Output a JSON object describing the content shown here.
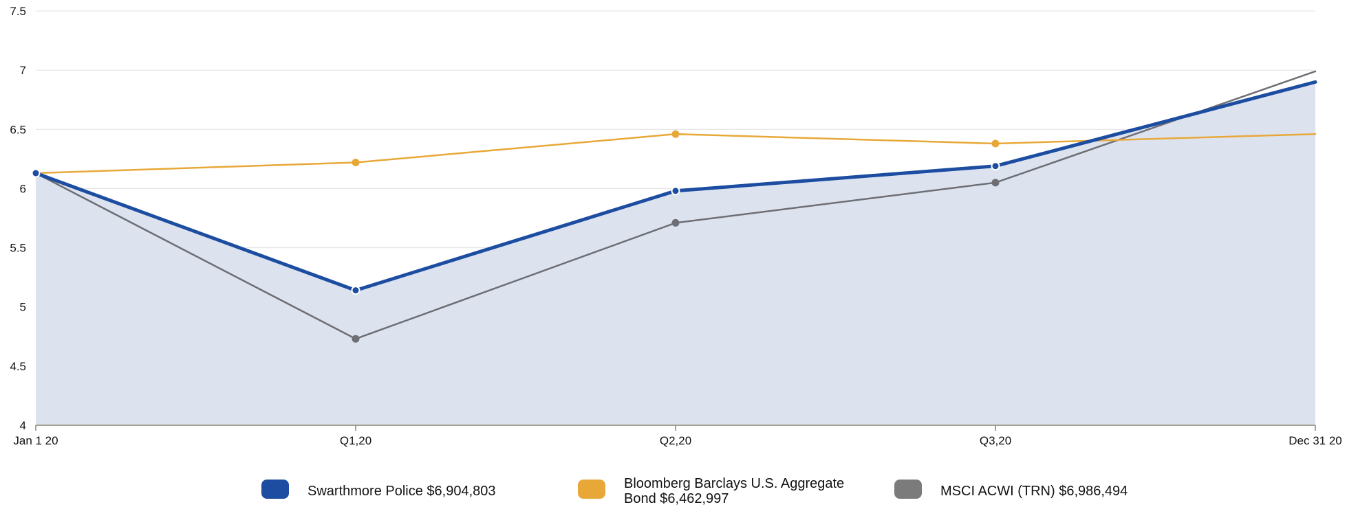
{
  "chart_data": {
    "type": "line",
    "categories": [
      "Jan 1 20",
      "Q1,20",
      "Q2,20",
      "Q3,20",
      "Dec 31 20"
    ],
    "title": "",
    "xlabel": "",
    "ylabel": "",
    "ylim": [
      4,
      7.5
    ],
    "yticks": [
      "4",
      "4.5",
      "5",
      "5.5",
      "6",
      "6.5",
      "7",
      "7.5"
    ],
    "grid": true,
    "legend_position": "bottom",
    "series": [
      {
        "name": "Swarthmore Police $6,904,803",
        "values": [
          6.13,
          5.14,
          5.98,
          6.19,
          6.9
        ],
        "color": "#1c4da1",
        "area_fill": "#dce3ef",
        "markers": true
      },
      {
        "name": "Bloomberg Barclays U.S. Aggregate Bond $6,462,997",
        "values": [
          6.13,
          6.22,
          6.46,
          6.38,
          6.46
        ],
        "color": "#e8a838",
        "markers": true
      },
      {
        "name": "MSCI ACWI (TRN) $6,986,494",
        "values": [
          6.13,
          4.73,
          5.71,
          6.05,
          6.99
        ],
        "color": "#6e6e74",
        "markers": true
      }
    ]
  },
  "legend": {
    "items": [
      {
        "label": "Swarthmore Police $6,904,803",
        "color": "#1c4da1"
      },
      {
        "label": "Bloomberg Barclays U.S. Aggregate Bond $6,462,997",
        "color": "#e8a838"
      },
      {
        "label": "MSCI ACWI (TRN) $6,986,494",
        "color": "#7b7b7b"
      }
    ]
  }
}
